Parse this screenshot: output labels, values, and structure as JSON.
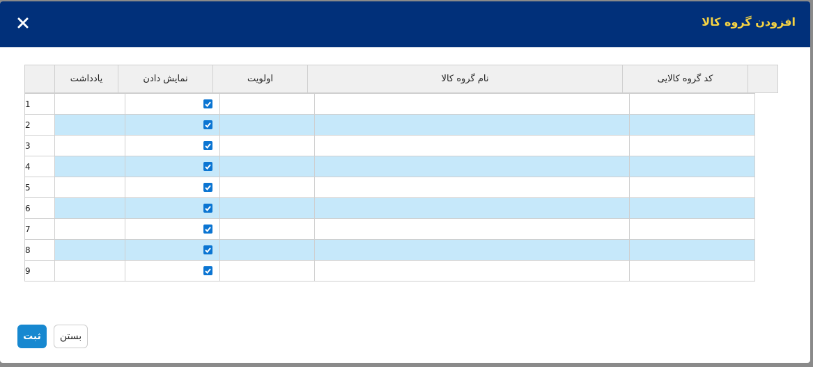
{
  "header": {
    "title": "افزودن گروه کالا"
  },
  "table": {
    "columns": [
      "کد گروه کالایی",
      "نام گروه کالا",
      "اولویت",
      "نمایش دادن",
      "یادداشت"
    ],
    "rows": [
      {
        "index": "1",
        "show": true
      },
      {
        "index": "2",
        "show": true
      },
      {
        "index": "3",
        "show": true
      },
      {
        "index": "4",
        "show": true
      },
      {
        "index": "5",
        "show": true
      },
      {
        "index": "6",
        "show": true
      },
      {
        "index": "7",
        "show": true
      },
      {
        "index": "8",
        "show": true
      },
      {
        "index": "9",
        "show": true
      }
    ]
  },
  "buttons": {
    "submit": "ثبت",
    "close": "بستن"
  }
}
